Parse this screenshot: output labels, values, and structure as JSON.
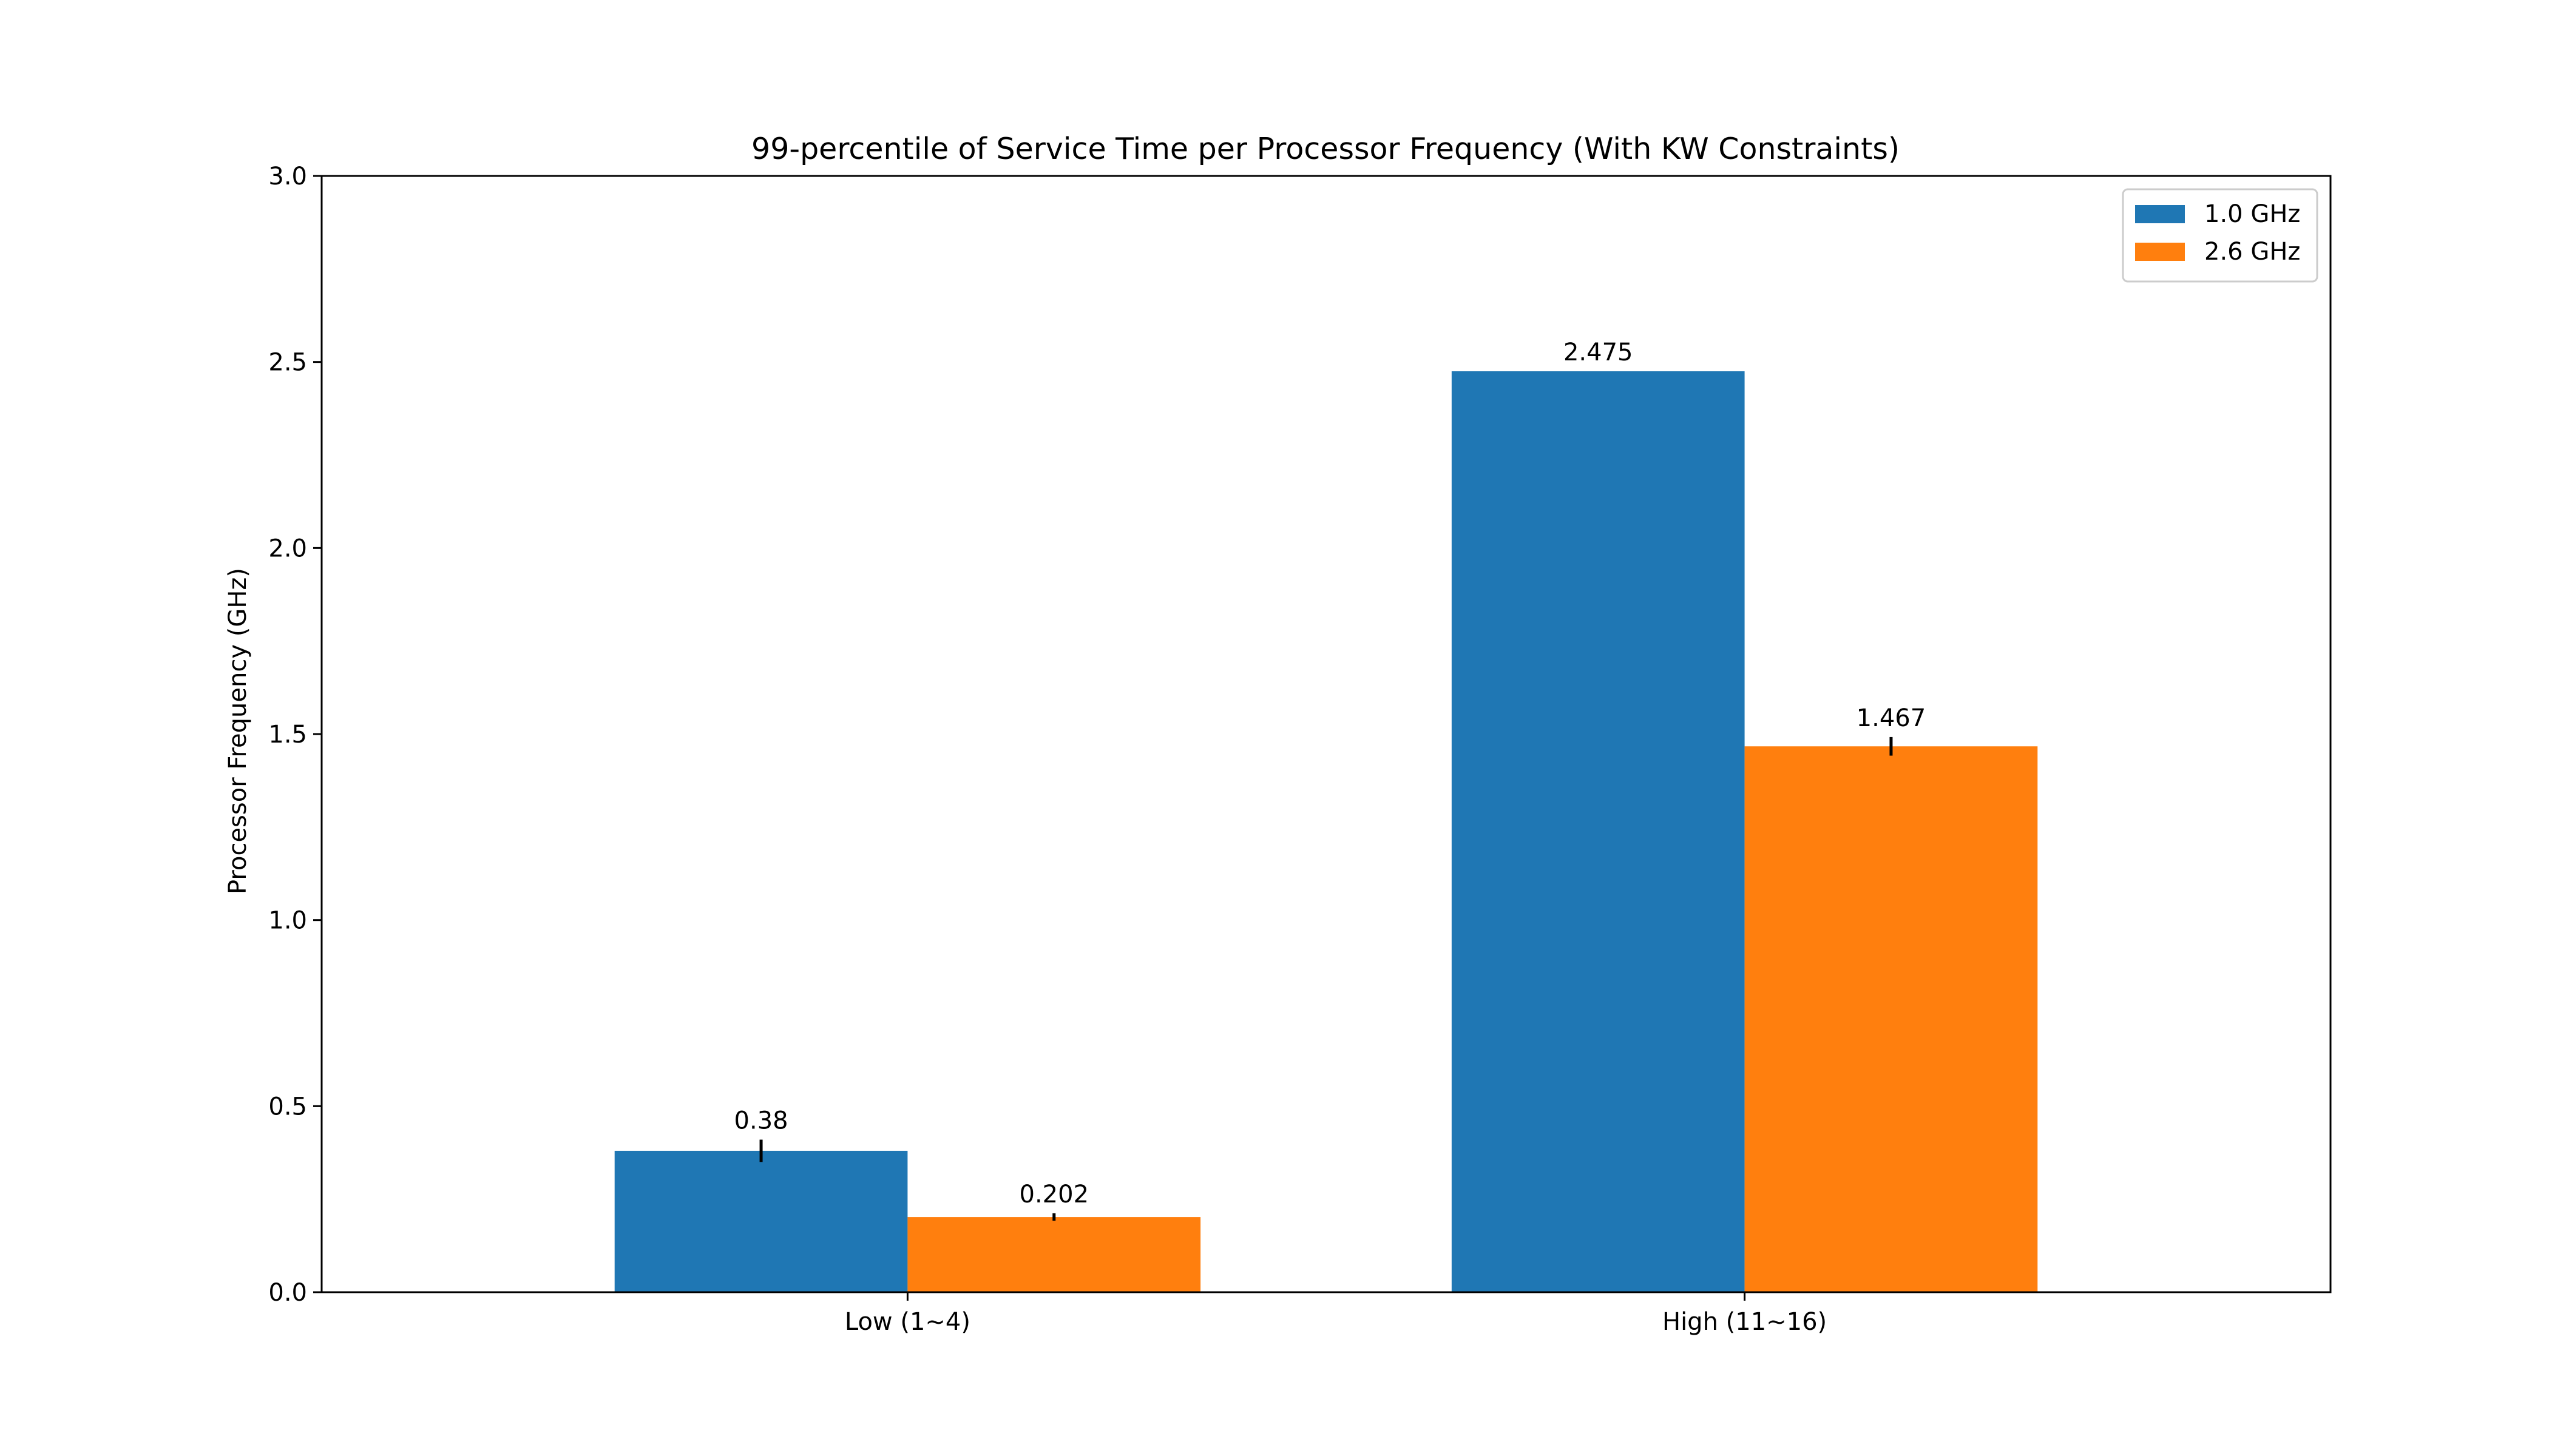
{
  "chart_data": {
    "type": "bar",
    "title": "99-percentile of Service Time per Processor Frequency (With KW Constraints)",
    "xlabel": "",
    "ylabel": "Processor Frequency (GHz)",
    "categories": [
      "Low (1~4)",
      "High (11~16)"
    ],
    "series": [
      {
        "name": "1.0 GHz",
        "color": "#1f77b4",
        "values": [
          0.38,
          2.475
        ],
        "value_labels": [
          "0.38",
          "2.475"
        ],
        "errors": [
          0.03,
          0.0
        ]
      },
      {
        "name": "2.6 GHz",
        "color": "#ff7f0e",
        "values": [
          0.202,
          1.467
        ],
        "value_labels": [
          "0.202",
          "1.467"
        ],
        "errors": [
          0.01,
          0.025
        ]
      }
    ],
    "ylim": [
      0,
      3.0
    ],
    "yticks": [
      0.0,
      0.5,
      1.0,
      1.5,
      2.0,
      2.5,
      3.0
    ],
    "ytick_labels": [
      "0.0",
      "0.5",
      "1.0",
      "1.5",
      "2.0",
      "2.5",
      "3.0"
    ],
    "grid": false,
    "legend_position": "top-right"
  }
}
